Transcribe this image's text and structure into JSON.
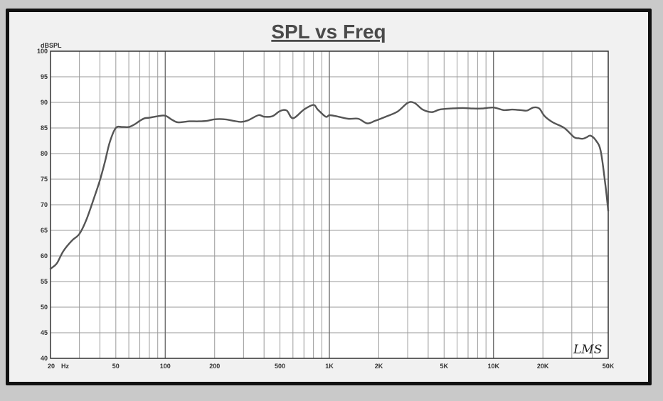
{
  "chart_data": {
    "type": "line",
    "title": "SPL vs Freq",
    "ylabel": "dBSPL",
    "xlabel": "",
    "x_scale": "log",
    "xlim": [
      20,
      50000
    ],
    "ylim": [
      40,
      100
    ],
    "grid": true,
    "y_ticks": [
      40,
      45,
      50,
      55,
      60,
      65,
      70,
      75,
      80,
      85,
      90,
      95,
      100
    ],
    "x_ticks": [
      {
        "value": 20,
        "label": "20"
      },
      {
        "value": 50,
        "label": "50"
      },
      {
        "value": 100,
        "label": "100"
      },
      {
        "value": 200,
        "label": "200"
      },
      {
        "value": 500,
        "label": "500"
      },
      {
        "value": 1000,
        "label": "1K"
      },
      {
        "value": 2000,
        "label": "2K"
      },
      {
        "value": 5000,
        "label": "5K"
      },
      {
        "value": 10000,
        "label": "10K"
      },
      {
        "value": 20000,
        "label": "20K"
      },
      {
        "value": 50000,
        "label": "50K"
      }
    ],
    "x_unit_label": "Hz",
    "watermark": "LMS",
    "line_color": "#555555",
    "series": [
      {
        "x": [
          20,
          21,
          22,
          24,
          27,
          30,
          33,
          37,
          40,
          43,
          46,
          50,
          55,
          60,
          65,
          70,
          75,
          80,
          90,
          100,
          110,
          120,
          140,
          160,
          180,
          200,
          230,
          260,
          290,
          320,
          370,
          400,
          450,
          500,
          550,
          600,
          700,
          800,
          850,
          950,
          1000,
          1100,
          1300,
          1500,
          1700,
          1900,
          2200,
          2600,
          3000,
          3300,
          3700,
          4200,
          4700,
          5500,
          6500,
          7500,
          8500,
          10000,
          11500,
          13000,
          14500,
          16000,
          17500,
          19000,
          20500,
          23000,
          27000,
          31000,
          33000,
          35000,
          37000,
          39000,
          42000,
          45000,
          48000,
          50000
        ],
        "values": [
          57.5,
          58,
          58.7,
          61,
          63,
          64.3,
          67,
          71.5,
          74.8,
          78.5,
          82.3,
          85.0,
          85.2,
          85.2,
          85.7,
          86.4,
          86.9,
          87.0,
          87.3,
          87.4,
          86.6,
          86.1,
          86.3,
          86.3,
          86.4,
          86.7,
          86.7,
          86.4,
          86.2,
          86.5,
          87.5,
          87.2,
          87.3,
          88.3,
          88.4,
          86.9,
          88.6,
          89.5,
          88.6,
          87.2,
          87.5,
          87.3,
          86.8,
          86.8,
          85.9,
          86.4,
          87.2,
          88.2,
          89.9,
          89.9,
          88.6,
          88.1,
          88.6,
          88.8,
          88.9,
          88.8,
          88.8,
          89.0,
          88.5,
          88.6,
          88.5,
          88.4,
          89.0,
          88.8,
          87.3,
          86.1,
          85.0,
          83.2,
          83.0,
          82.9,
          83.2,
          83.5,
          82.6,
          80.5,
          74.0,
          68.8
        ]
      }
    ]
  }
}
